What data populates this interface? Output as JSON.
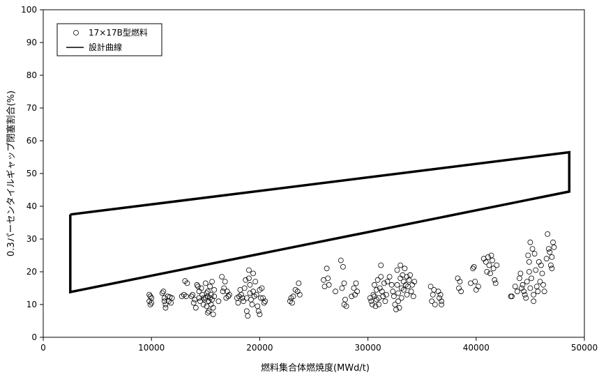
{
  "chart_data": {
    "type": "scatter",
    "xlabel": "燃料集合体燃焼度(MWd/t)",
    "ylabel": "0.3パーセンタイルギャップ閉塞割合(%)",
    "xlim": [
      0,
      50000
    ],
    "ylim": [
      0,
      100
    ],
    "x_ticks": [
      "0",
      "10000",
      "20000",
      "30000",
      "40000",
      "50000"
    ],
    "y_ticks": [
      "0",
      "10",
      "20",
      "30",
      "40",
      "50",
      "60",
      "70",
      "80",
      "90",
      "100"
    ],
    "grid": false,
    "legend_placement": "top-left",
    "legend": [
      {
        "label": "17×17B型燃料",
        "marker": "circle"
      },
      {
        "label": "設計曲線",
        "marker": "line"
      }
    ],
    "series": [
      {
        "name": "17×17B型燃料",
        "marker": "circle",
        "points": [
          [
            9800,
            13
          ],
          [
            9900,
            12.5
          ],
          [
            9800,
            11
          ],
          [
            9900,
            10
          ],
          [
            10000,
            12
          ],
          [
            10000,
            10.5
          ],
          [
            11000,
            13.5
          ],
          [
            11100,
            14
          ],
          [
            11200,
            12
          ],
          [
            11200,
            11
          ],
          [
            11300,
            10
          ],
          [
            11300,
            9
          ],
          [
            11500,
            12.5
          ],
          [
            11600,
            11
          ],
          [
            11700,
            12.3
          ],
          [
            11800,
            10.5
          ],
          [
            11900,
            12
          ],
          [
            12800,
            12.5
          ],
          [
            13000,
            13
          ],
          [
            13100,
            17.2
          ],
          [
            13200,
            12.5
          ],
          [
            13300,
            16.5
          ],
          [
            13700,
            12.5
          ],
          [
            13800,
            13
          ],
          [
            13900,
            10.5
          ],
          [
            14000,
            11.5
          ],
          [
            14100,
            9
          ],
          [
            14200,
            16
          ],
          [
            14300,
            15.5
          ],
          [
            14400,
            14
          ],
          [
            14400,
            12
          ],
          [
            14500,
            11
          ],
          [
            14600,
            15
          ],
          [
            14700,
            13
          ],
          [
            14800,
            12
          ],
          [
            14800,
            10
          ],
          [
            14900,
            11.5
          ],
          [
            15000,
            16.5
          ],
          [
            15000,
            12
          ],
          [
            15100,
            13.5
          ],
          [
            15100,
            9.5
          ],
          [
            15200,
            14
          ],
          [
            15200,
            12.5
          ],
          [
            15200,
            7.5
          ],
          [
            15300,
            11
          ],
          [
            15300,
            8
          ],
          [
            15400,
            15.5
          ],
          [
            15400,
            12
          ],
          [
            15500,
            13
          ],
          [
            15500,
            10
          ],
          [
            15600,
            17
          ],
          [
            15600,
            11.5
          ],
          [
            15700,
            9
          ],
          [
            15700,
            7
          ],
          [
            15800,
            14.5
          ],
          [
            15800,
            12.5
          ],
          [
            16200,
            11
          ],
          [
            16500,
            18.5
          ],
          [
            16600,
            14
          ],
          [
            16700,
            15
          ],
          [
            16800,
            17
          ],
          [
            16900,
            12
          ],
          [
            17000,
            14
          ],
          [
            17100,
            12.5
          ],
          [
            17200,
            13
          ],
          [
            17900,
            12
          ],
          [
            18000,
            10.5
          ],
          [
            18100,
            12.5
          ],
          [
            18200,
            14.5
          ],
          [
            18300,
            13
          ],
          [
            18400,
            12
          ],
          [
            18500,
            11
          ],
          [
            18600,
            15
          ],
          [
            18700,
            17.5
          ],
          [
            18800,
            12
          ],
          [
            18800,
            8
          ],
          [
            18900,
            6.5
          ],
          [
            19000,
            20.5
          ],
          [
            19000,
            18
          ],
          [
            19100,
            16
          ],
          [
            19100,
            13.5
          ],
          [
            19200,
            11.5
          ],
          [
            19300,
            10
          ],
          [
            19400,
            19.5
          ],
          [
            19400,
            14
          ],
          [
            19500,
            12.5
          ],
          [
            19600,
            17
          ],
          [
            19700,
            13
          ],
          [
            19800,
            9.5
          ],
          [
            19900,
            8
          ],
          [
            20000,
            7
          ],
          [
            20000,
            14.5
          ],
          [
            20100,
            12
          ],
          [
            20200,
            15
          ],
          [
            20300,
            12
          ],
          [
            20400,
            10.5
          ],
          [
            20500,
            11
          ],
          [
            22800,
            11
          ],
          [
            22900,
            12
          ],
          [
            23000,
            10.5
          ],
          [
            23100,
            12.5
          ],
          [
            23300,
            14.5
          ],
          [
            23500,
            14
          ],
          [
            23600,
            16.5
          ],
          [
            23700,
            13
          ],
          [
            25900,
            17.5
          ],
          [
            26000,
            15.5
          ],
          [
            26200,
            21
          ],
          [
            26300,
            18
          ],
          [
            26400,
            16
          ],
          [
            27000,
            14
          ],
          [
            27500,
            23.5
          ],
          [
            27600,
            15
          ],
          [
            27700,
            21.5
          ],
          [
            27800,
            16.5
          ],
          [
            27800,
            10
          ],
          [
            27900,
            11.5
          ],
          [
            28000,
            9.5
          ],
          [
            28500,
            12.5
          ],
          [
            28700,
            15
          ],
          [
            28800,
            13
          ],
          [
            28900,
            16.5
          ],
          [
            29000,
            14
          ],
          [
            30200,
            12
          ],
          [
            30300,
            11
          ],
          [
            30400,
            10
          ],
          [
            30500,
            13
          ],
          [
            30600,
            16
          ],
          [
            30600,
            12.5
          ],
          [
            30700,
            9.5
          ],
          [
            30800,
            11.5
          ],
          [
            30800,
            14.5
          ],
          [
            30900,
            17.5
          ],
          [
            31000,
            12
          ],
          [
            31000,
            10
          ],
          [
            31100,
            15
          ],
          [
            31200,
            22
          ],
          [
            31200,
            18.5
          ],
          [
            31300,
            14
          ],
          [
            31400,
            12.5
          ],
          [
            31500,
            16.5
          ],
          [
            31600,
            11
          ],
          [
            31700,
            13
          ],
          [
            31800,
            17
          ],
          [
            32000,
            18.5
          ],
          [
            32200,
            16
          ],
          [
            32300,
            14
          ],
          [
            32400,
            12.5
          ],
          [
            32500,
            10
          ],
          [
            32600,
            8.5
          ],
          [
            32700,
            20.5
          ],
          [
            32700,
            16
          ],
          [
            32800,
            13.5
          ],
          [
            32800,
            11
          ],
          [
            32900,
            9
          ],
          [
            33000,
            22
          ],
          [
            33000,
            18
          ],
          [
            33100,
            15
          ],
          [
            33100,
            12
          ],
          [
            33200,
            19
          ],
          [
            33300,
            17
          ],
          [
            33300,
            14.5
          ],
          [
            33400,
            21
          ],
          [
            33500,
            16
          ],
          [
            33600,
            18.5
          ],
          [
            33600,
            13
          ],
          [
            33700,
            15.5
          ],
          [
            33800,
            17.5
          ],
          [
            33900,
            19
          ],
          [
            34000,
            14
          ],
          [
            34100,
            16
          ],
          [
            34200,
            12.5
          ],
          [
            34300,
            17
          ],
          [
            35800,
            15.5
          ],
          [
            35900,
            11
          ],
          [
            36000,
            13
          ],
          [
            36100,
            14.5
          ],
          [
            36200,
            10
          ],
          [
            36500,
            14
          ],
          [
            36600,
            12
          ],
          [
            36700,
            13
          ],
          [
            36800,
            11
          ],
          [
            36800,
            10
          ],
          [
            38300,
            18
          ],
          [
            38400,
            15
          ],
          [
            38500,
            17
          ],
          [
            38600,
            14
          ],
          [
            39500,
            16.5
          ],
          [
            39700,
            21
          ],
          [
            39800,
            21.5
          ],
          [
            39900,
            17
          ],
          [
            40000,
            14.5
          ],
          [
            40200,
            15.5
          ],
          [
            40700,
            24
          ],
          [
            40900,
            23
          ],
          [
            41000,
            20
          ],
          [
            41100,
            24.5
          ],
          [
            41200,
            22
          ],
          [
            41300,
            19.5
          ],
          [
            41400,
            25
          ],
          [
            41500,
            23.5
          ],
          [
            41600,
            21
          ],
          [
            41700,
            17.5
          ],
          [
            41800,
            16.5
          ],
          [
            41900,
            22
          ],
          [
            43200,
            12.5
          ],
          [
            43300,
            12.5
          ],
          [
            43600,
            15.5
          ],
          [
            43800,
            14
          ],
          [
            44000,
            18
          ],
          [
            44100,
            19.5
          ],
          [
            44200,
            15
          ],
          [
            44300,
            16
          ],
          [
            44400,
            14
          ],
          [
            44500,
            13
          ],
          [
            44600,
            12
          ],
          [
            44700,
            17
          ],
          [
            44800,
            25
          ],
          [
            44900,
            23
          ],
          [
            44900,
            20
          ],
          [
            45000,
            29
          ],
          [
            45000,
            15
          ],
          [
            45100,
            18
          ],
          [
            45200,
            27
          ],
          [
            45300,
            13
          ],
          [
            45300,
            11
          ],
          [
            45400,
            25.5
          ],
          [
            45500,
            20.5
          ],
          [
            45600,
            15.5
          ],
          [
            45700,
            14
          ],
          [
            45800,
            23
          ],
          [
            45900,
            17
          ],
          [
            46000,
            22
          ],
          [
            46100,
            19.5
          ],
          [
            46200,
            16
          ],
          [
            46300,
            14
          ],
          [
            46500,
            24
          ],
          [
            46600,
            31.5
          ],
          [
            46700,
            27
          ],
          [
            46800,
            26
          ],
          [
            46900,
            22
          ],
          [
            47000,
            24.5
          ],
          [
            47000,
            21
          ],
          [
            47100,
            29
          ],
          [
            47200,
            27.5
          ]
        ]
      },
      {
        "name": "設計曲線",
        "marker": "line",
        "points": [
          [
            2500,
            37.5
          ],
          [
            48600,
            56.5
          ],
          [
            48600,
            44.5
          ],
          [
            2500,
            13.8
          ],
          [
            2500,
            37.5
          ]
        ]
      }
    ]
  }
}
